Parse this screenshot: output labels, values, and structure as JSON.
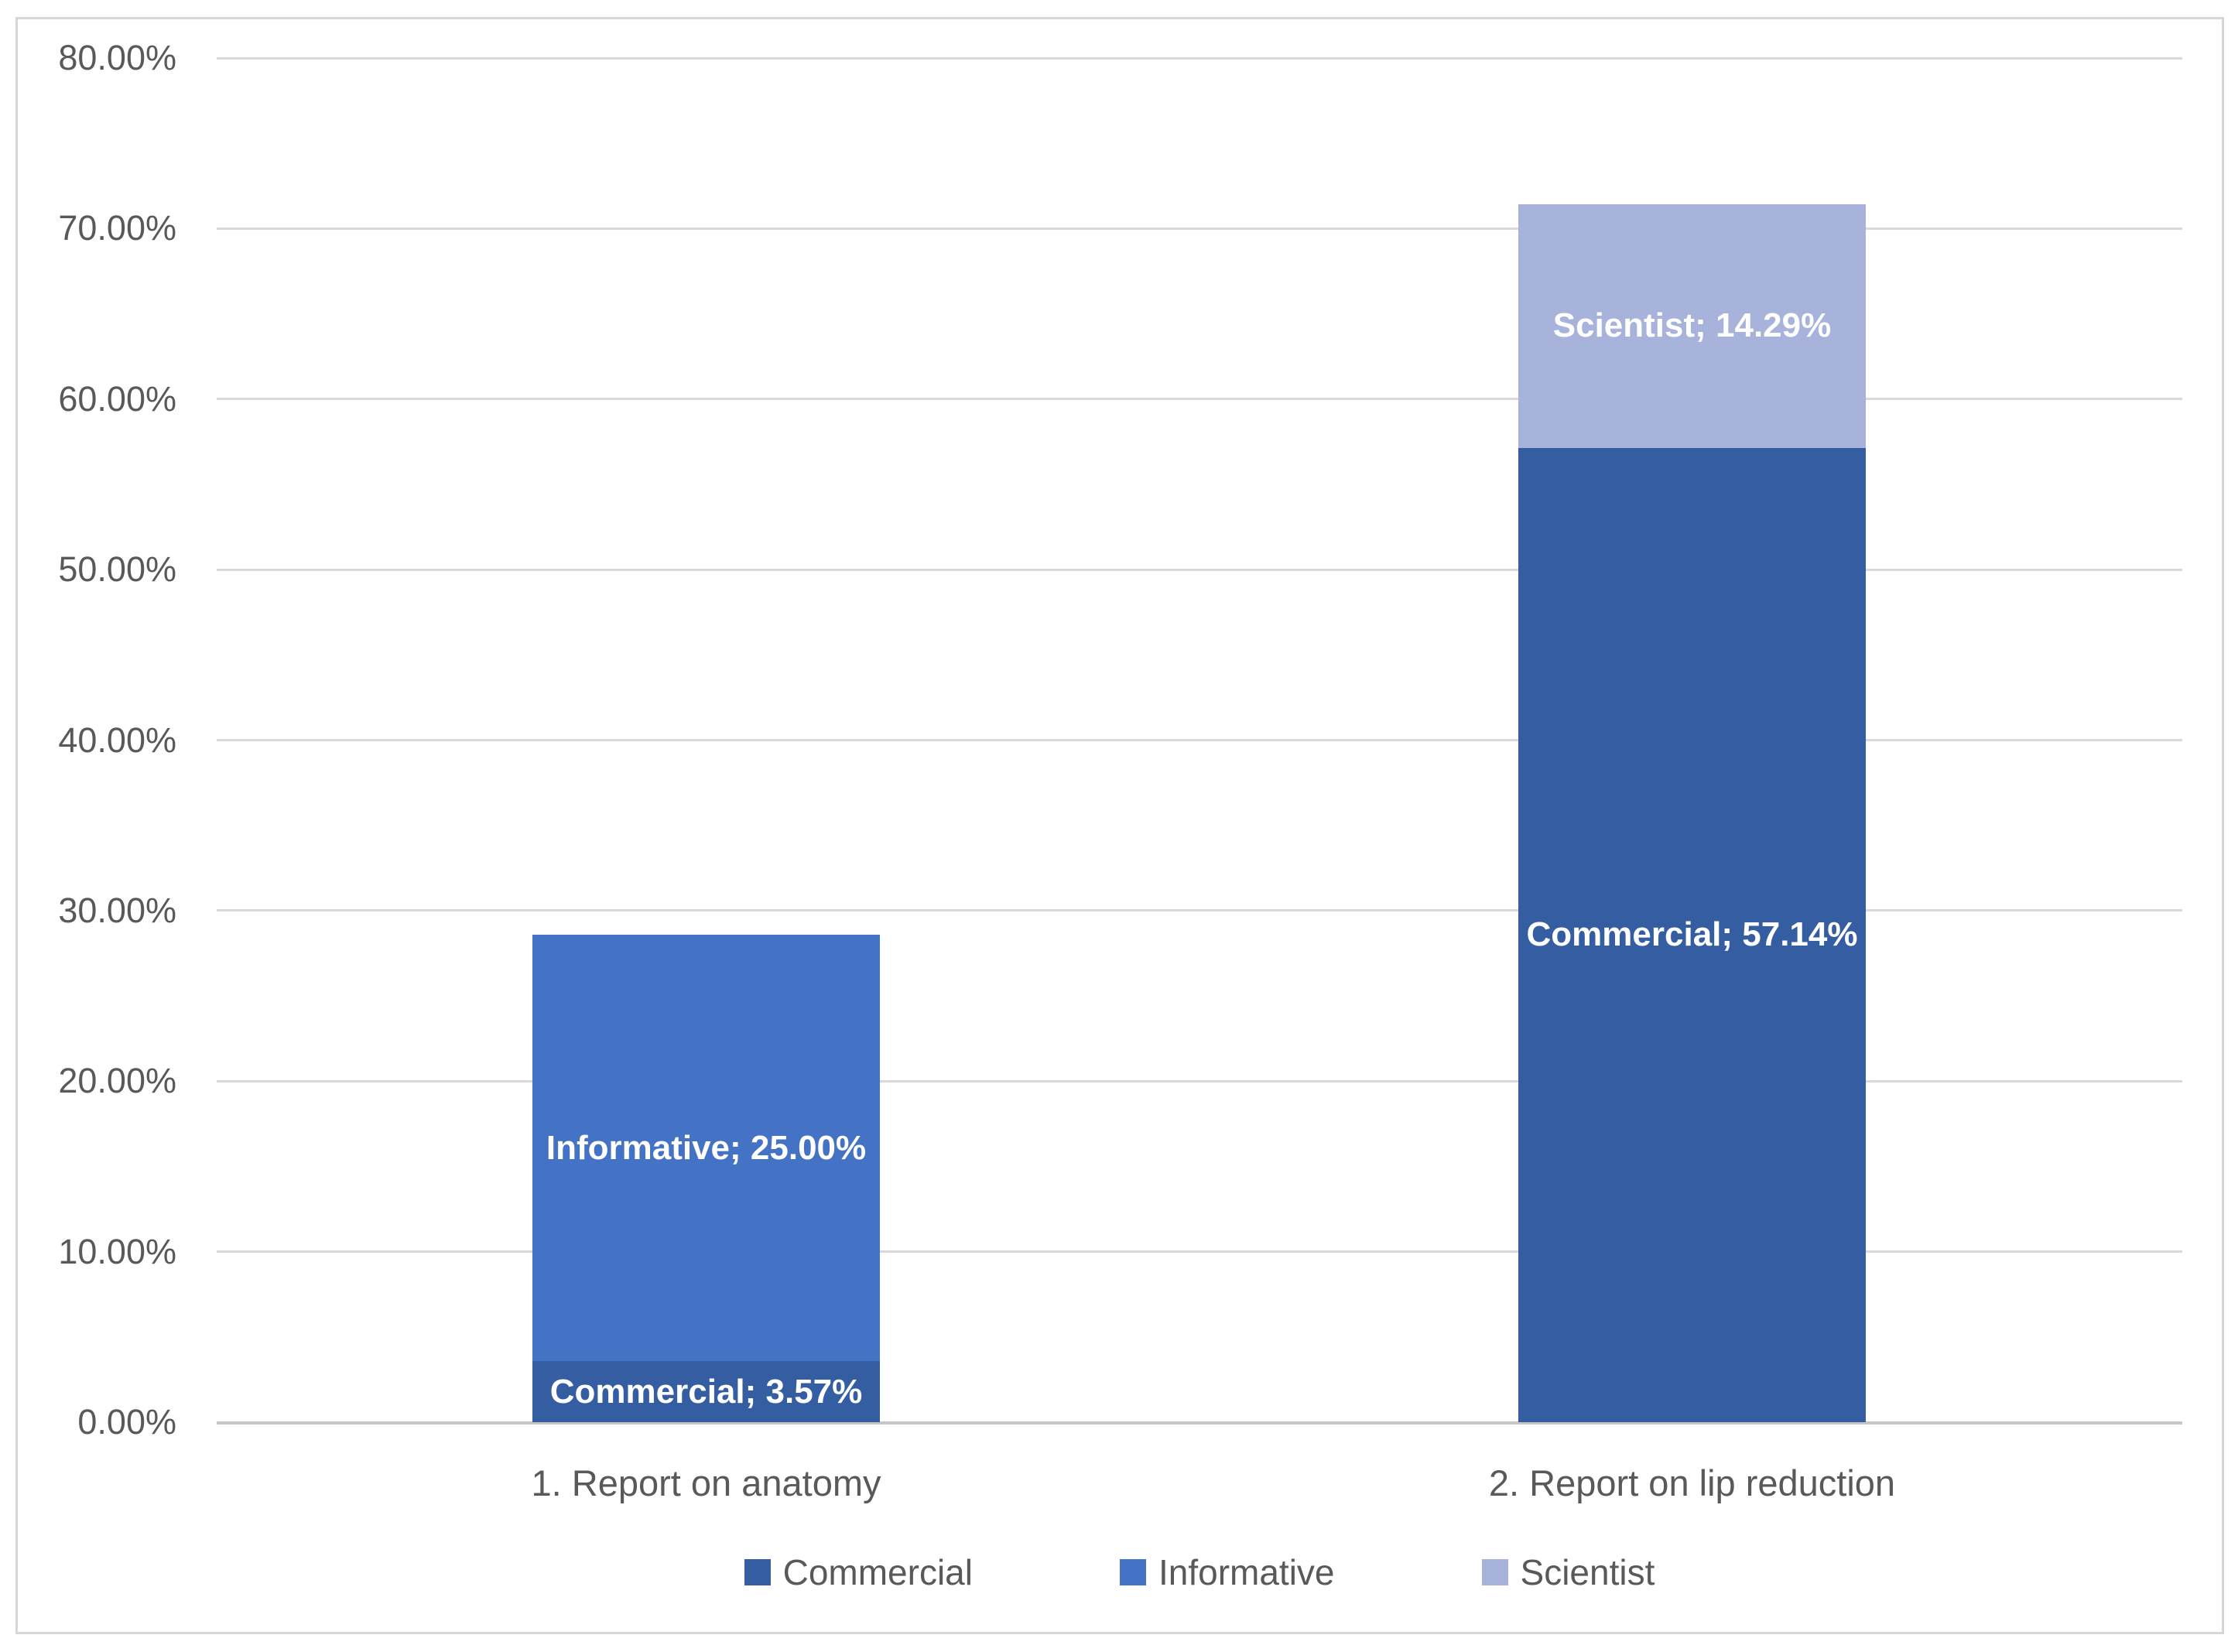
{
  "chart_data": {
    "type": "bar",
    "variant": "stacked-column",
    "title": "",
    "xlabel": "",
    "ylabel": "",
    "categories": [
      "1. Report on anatomy",
      "2. Report on lip reduction"
    ],
    "series": [
      {
        "name": "Commercial",
        "color": "#355EA2",
        "values": [
          3.57,
          57.14
        ]
      },
      {
        "name": "Informative",
        "color": "#4472C4",
        "values": [
          25.0,
          0
        ]
      },
      {
        "name": "Scientist",
        "color": "#A7B3DB",
        "values": [
          0,
          14.29
        ]
      }
    ],
    "segment_labels": [
      {
        "category": 0,
        "series": "Commercial",
        "text": "Commercial; 3.57%"
      },
      {
        "category": 0,
        "series": "Informative",
        "text": "Informative; 25.00%"
      },
      {
        "category": 1,
        "series": "Commercial",
        "text": "Commercial; 57.14%"
      },
      {
        "category": 1,
        "series": "Scientist",
        "text": "Scientist; 14.29%"
      }
    ],
    "y_axis": {
      "min": 0,
      "max": 80,
      "step": 10,
      "tick_labels": [
        "80.00%",
        "70.00%",
        "60.00%",
        "50.00%",
        "40.00%",
        "30.00%",
        "20.00%",
        "10.00%",
        "0.00%"
      ]
    },
    "legend": {
      "position": "bottom",
      "entries": [
        "Commercial",
        "Informative",
        "Scientist"
      ]
    },
    "grid": true,
    "colors": {
      "commercial": "#355EA2",
      "informative": "#4472C4",
      "scientist": "#A7B3DB",
      "gridline": "#D9D9D9",
      "axis_line": "#C6C6C6",
      "axis_text": "#595959",
      "data_label_text": "#FFFFFF",
      "chart_border": "#D6D6D6",
      "background": "#FFFFFF"
    }
  }
}
